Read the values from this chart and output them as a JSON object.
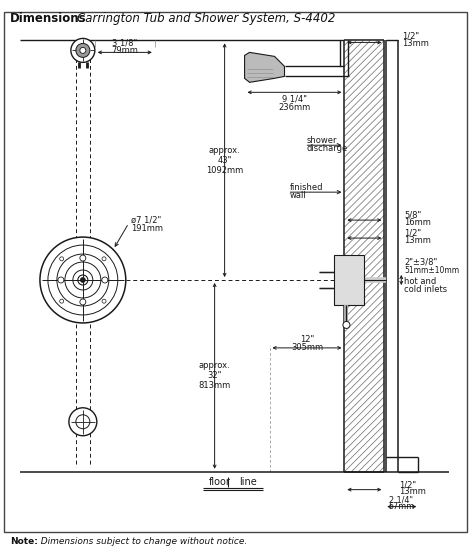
{
  "title_bold": "Dimensions",
  "title_italic": "Carrington Tub and Shower System, S-4402",
  "note_bold": "Note:",
  "note_italic": "  Dimensions subject to change without notice.",
  "bg_color": "#ffffff",
  "lc": "#1a1a1a",
  "gray": "#888888",
  "light_gray": "#cccccc",
  "wall_hatch_color": "#555555"
}
